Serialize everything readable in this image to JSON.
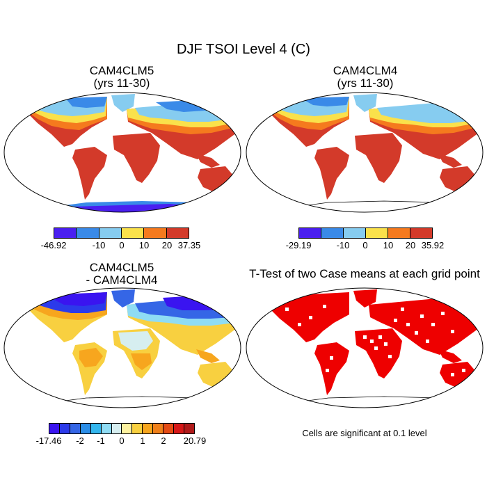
{
  "figure_title": "DJF TSOI Level 4 (C)",
  "panels": {
    "top_left": {
      "title_line1": "CAM4CLM5",
      "title_line2": "(yrs 11-30)",
      "colorbar": {
        "colors": [
          "#4a1ff0",
          "#3a8ae8",
          "#86ccf0",
          "#fae14b",
          "#f57a1e",
          "#d33a2a"
        ],
        "tick_labels": [
          "-46.92",
          "-10",
          "0",
          "10",
          "20",
          "37.35"
        ]
      }
    },
    "top_right": {
      "title_line1": "CAM4CLM4",
      "title_line2": "(yrs 11-30)",
      "colorbar": {
        "colors": [
          "#4a1ff0",
          "#3a8ae8",
          "#86ccf0",
          "#fae14b",
          "#f57a1e",
          "#d33a2a"
        ],
        "tick_labels": [
          "-29.19",
          "-10",
          "0",
          "10",
          "20",
          "35.92"
        ]
      }
    },
    "bottom_left": {
      "title_line1": "CAM4CLM5",
      "title_line2": "- CAM4CLM4",
      "colorbar": {
        "colors": [
          "#3a14f0",
          "#2c3aea",
          "#3566e6",
          "#2b8ee8",
          "#33b6ee",
          "#8fdcf4",
          "#d6eef0",
          "#fdf2a0",
          "#f8d040",
          "#f7a61e",
          "#f0801a",
          "#e54b14",
          "#d61818",
          "#b01a1a"
        ],
        "tick_labels": [
          "-17.46",
          "-2",
          "-1",
          "0",
          "1",
          "2",
          "20.79"
        ]
      }
    },
    "bottom_right": {
      "title": "T-Test of two Case means at each grid point",
      "note": "Cells are significant at 0.1 level",
      "color": "#ee0000"
    }
  }
}
